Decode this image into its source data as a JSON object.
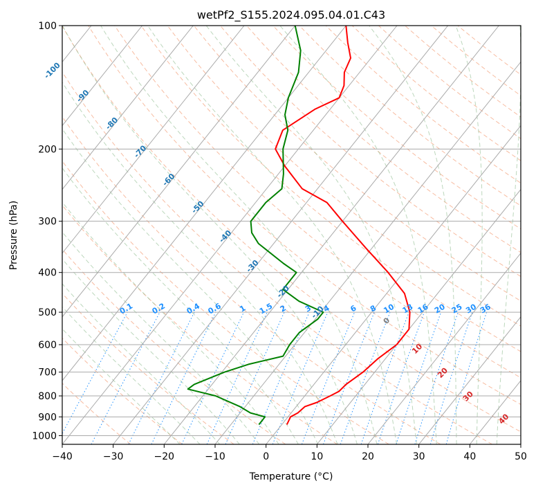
{
  "chart_data": {
    "type": "skew-t",
    "title": "wetPf2_S155.2024.095.04.01.C43",
    "xlabel": "Temperature (°C)",
    "ylabel": "Pressure (hPa)",
    "xlim": [
      -40,
      50
    ],
    "ylim": [
      1050,
      100
    ],
    "y_scale": "log",
    "grid": true,
    "x_ticks": [
      -40,
      -30,
      -20,
      -10,
      0,
      10,
      20,
      30,
      40,
      50
    ],
    "y_ticks": [
      100,
      200,
      300,
      400,
      500,
      600,
      700,
      800,
      900,
      1000
    ],
    "series": [
      {
        "color": "#ff0000",
        "points": [
          [
            940,
            1.0
          ],
          [
            900,
            0.5
          ],
          [
            880,
            1.3
          ],
          [
            850,
            1.7
          ],
          [
            830,
            3.4
          ],
          [
            800,
            5.0
          ],
          [
            780,
            6.0
          ],
          [
            750,
            6.3
          ],
          [
            700,
            7.7
          ],
          [
            650,
            8.5
          ],
          [
            600,
            10.0
          ],
          [
            550,
            10.0
          ],
          [
            500,
            7.5
          ],
          [
            450,
            3.5
          ],
          [
            400,
            -3.0
          ],
          [
            350,
            -11.0
          ],
          [
            300,
            -20.0
          ],
          [
            270,
            -26.0
          ],
          [
            250,
            -33.0
          ],
          [
            220,
            -40.0
          ],
          [
            200,
            -44.5
          ],
          [
            180,
            -46.0
          ],
          [
            160,
            -43.0
          ],
          [
            150,
            -40.0
          ],
          [
            140,
            -41.0
          ],
          [
            130,
            -43.0
          ],
          [
            120,
            -44.0
          ],
          [
            110,
            -47.0
          ],
          [
            100,
            -50.0
          ]
        ]
      },
      {
        "color": "#008000",
        "points": [
          [
            940,
            -4.5
          ],
          [
            900,
            -4.5
          ],
          [
            880,
            -8.0
          ],
          [
            850,
            -11.0
          ],
          [
            800,
            -17.5
          ],
          [
            770,
            -24.0
          ],
          [
            750,
            -23.5
          ],
          [
            700,
            -19.5
          ],
          [
            670,
            -16.0
          ],
          [
            640,
            -10.5
          ],
          [
            600,
            -11.0
          ],
          [
            560,
            -11.0
          ],
          [
            520,
            -9.5
          ],
          [
            500,
            -9.5
          ],
          [
            470,
            -16.0
          ],
          [
            440,
            -21.0
          ],
          [
            420,
            -21.0
          ],
          [
            400,
            -21.0
          ],
          [
            380,
            -25.0
          ],
          [
            340,
            -33.0
          ],
          [
            320,
            -36.0
          ],
          [
            300,
            -38.0
          ],
          [
            270,
            -38.0
          ],
          [
            250,
            -37.0
          ],
          [
            230,
            -39.0
          ],
          [
            200,
            -43.0
          ],
          [
            180,
            -45.0
          ],
          [
            165,
            -48.0
          ],
          [
            150,
            -50.0
          ],
          [
            130,
            -52.0
          ],
          [
            115,
            -55.0
          ],
          [
            100,
            -60.0
          ]
        ]
      }
    ],
    "isotherm_labels": [
      "-100",
      "-90",
      "-80",
      "-70",
      "-60",
      "-50",
      "-40",
      "-30",
      "-20",
      "-10"
    ],
    "mixing_ratio_labels": [
      "0.1",
      "0.2",
      "0.4",
      "0.6",
      "1",
      "1.5",
      "2",
      "3",
      "4",
      "6",
      "8",
      "10",
      "13",
      "16",
      "20",
      "25",
      "30",
      "36"
    ],
    "moist_adiabat_labels": [
      "0",
      "10",
      "20",
      "30",
      "40"
    ],
    "colors": {
      "temperature": "#ff0000",
      "dewpoint": "#008000",
      "isotherm_grid": "#aaaaaa",
      "dry_adiabat": "#f4a582",
      "moist_adiabat": "#8fbc8f",
      "mixing_ratio": "#1e90ff",
      "isotherm_label": "#1f77b4",
      "mixing_label": "#1e90ff",
      "moist_label": "#d62728",
      "zero_label": "#808080"
    }
  }
}
